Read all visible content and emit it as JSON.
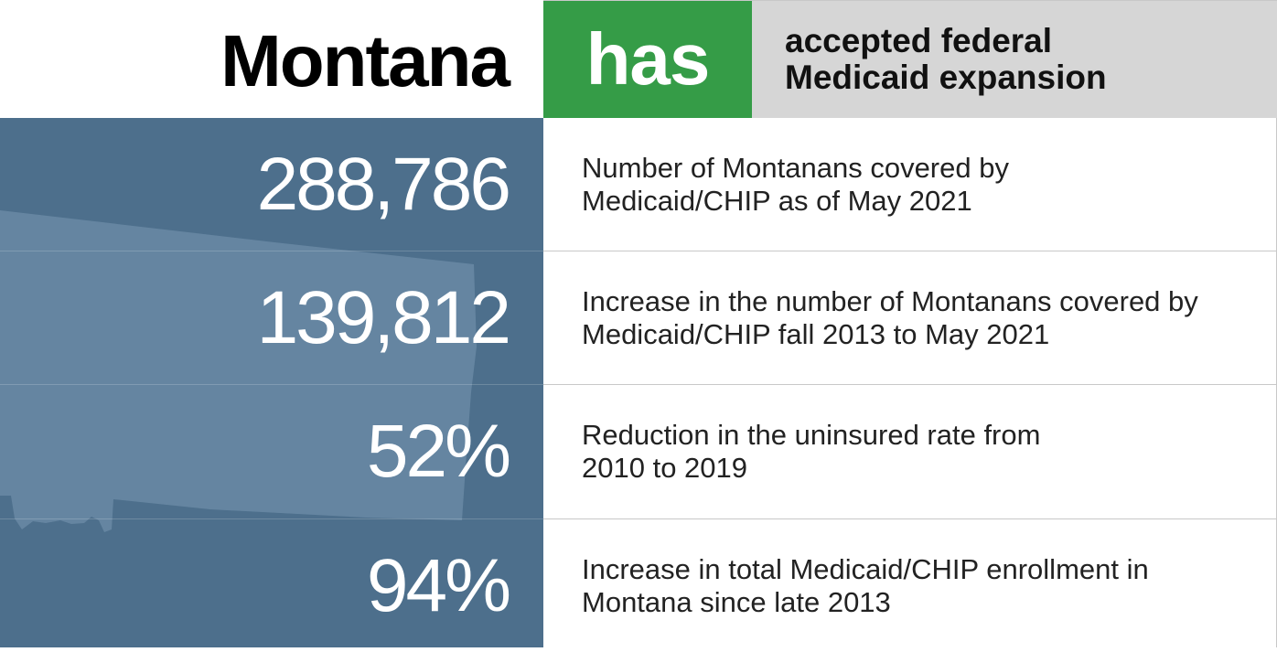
{
  "header": {
    "state": "Montana",
    "status": "has",
    "status_line1": "accepted federal",
    "status_line2": "Medicaid expansion"
  },
  "colors": {
    "status_green": "#359c47",
    "panel_blue": "#4d6f8c",
    "map_fill": "#6a8aa5",
    "header_gray": "#d6d6d6"
  },
  "map_icon": "montana-state-outline",
  "stats": [
    {
      "value": "288,786",
      "line1": "Number of Montanans covered by",
      "line2": "Medicaid/CHIP as of May 2021"
    },
    {
      "value": "139,812",
      "line1": "Increase in the number of Montanans covered by",
      "line2": "Medicaid/CHIP fall 2013 to May 2021"
    },
    {
      "value": "52%",
      "line1": "Reduction in the uninsured rate from",
      "line2": "2010 to 2019"
    },
    {
      "value": "94%",
      "line1": "Increase in total Medicaid/CHIP enrollment in",
      "line2": "Montana since late 2013"
    }
  ]
}
